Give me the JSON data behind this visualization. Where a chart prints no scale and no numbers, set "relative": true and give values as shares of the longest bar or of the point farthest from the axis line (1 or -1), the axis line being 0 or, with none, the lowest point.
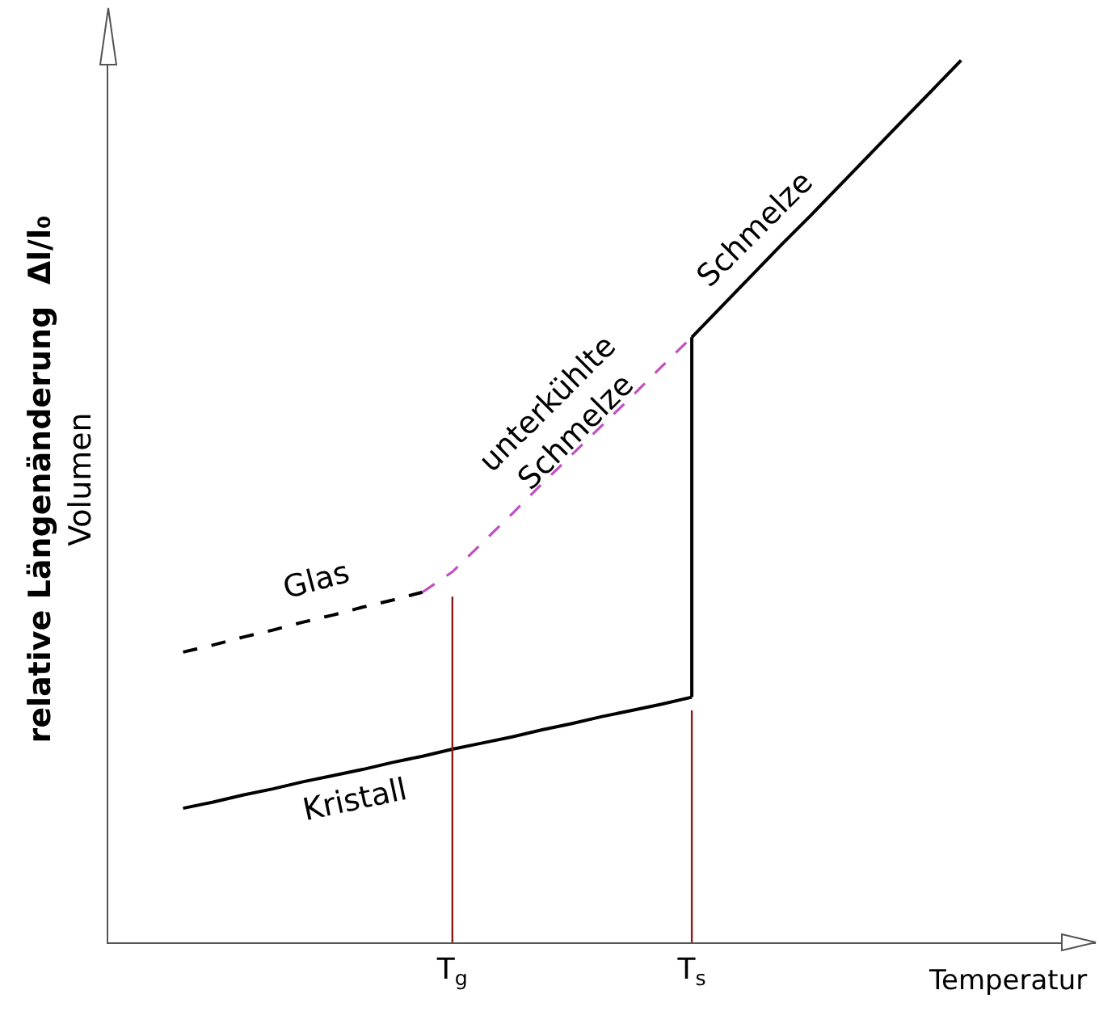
{
  "chart_data": {
    "type": "line",
    "relative": true,
    "xlabel": "Temperatur",
    "ylabel": "relative Längenänderung  Δl/l₀\nVolumen",
    "grid": false,
    "marker": "none",
    "categories": [
      null,
      null,
      null,
      null,
      null,
      null,
      null,
      null,
      null,
      null,
      null,
      "T$_{g}$",
      null,
      null,
      null,
      null,
      null,
      null,
      null,
      "T$_{s}$",
      null,
      null,
      null,
      null,
      null,
      null,
      null,
      null,
      null,
      null,
      null,
      null,
      null
    ],
    "series": [
      {
        "color": "#000000",
        "line_style": "solid",
        "values": [
          null,
          null,
          0.152,
          0.159,
          0.167,
          0.174,
          0.182,
          0.189,
          0.196,
          0.204,
          0.211,
          0.219,
          0.226,
          0.233,
          0.241,
          0.248,
          0.256,
          0.263,
          0.27,
          0.278,
          null,
          null,
          null,
          null,
          null,
          null,
          null,
          null,
          null,
          null,
          null,
          null,
          null
        ]
      },
      {
        "color": "#000000",
        "line_style": "solid",
        "x": [
          "T$_{s}$",
          "T$_{s}$"
        ],
        "values": [
          0.278,
          0.686
        ]
      },
      {
        "color": "#000000",
        "line_style": "solid",
        "values": [
          null,
          null,
          null,
          null,
          null,
          null,
          null,
          null,
          null,
          null,
          null,
          null,
          null,
          null,
          null,
          null,
          null,
          null,
          null,
          0.686,
          0.721,
          0.756,
          0.791,
          0.825,
          0.86,
          0.895,
          0.93,
          0.965,
          1,
          null,
          null,
          null,
          null
        ]
      },
      {
        "color": "#000000",
        "line_style": "dashed",
        "values": [
          null,
          null,
          0.329,
          0.337,
          0.346,
          0.354,
          0.363,
          0.371,
          0.38,
          0.388,
          0.397,
          null,
          null,
          null,
          null,
          null,
          null,
          null,
          null,
          null,
          null,
          null,
          null,
          null,
          null,
          null,
          null,
          null,
          null,
          null,
          null,
          null,
          null
        ]
      },
      {
        "color": "#c050c0",
        "line_style": "dashed",
        "values": [
          null,
          null,
          null,
          null,
          null,
          null,
          null,
          null,
          null,
          null,
          0.397,
          0.42,
          0.453,
          0.486,
          0.52,
          0.553,
          0.586,
          0.619,
          0.653,
          0.686,
          null,
          null,
          null,
          null,
          null,
          null,
          null,
          null,
          null,
          null,
          null,
          null,
          null
        ]
      },
      {
        "color": "#8b1a1a",
        "line_style": "solid",
        "x": [
          "T$_{g}$",
          "T$_{g}$"
        ],
        "values": [
          0,
          0.392
        ]
      },
      {
        "color": "#8b1a1a",
        "line_style": "solid",
        "x": [
          "T$_{s}$",
          "T$_{s}$"
        ],
        "values": [
          0,
          0.263
        ]
      }
    ],
    "annotations": [
      "Glas",
      "Kristall",
      "unterkühlte\nSchmelze",
      "Schmelze"
    ]
  }
}
